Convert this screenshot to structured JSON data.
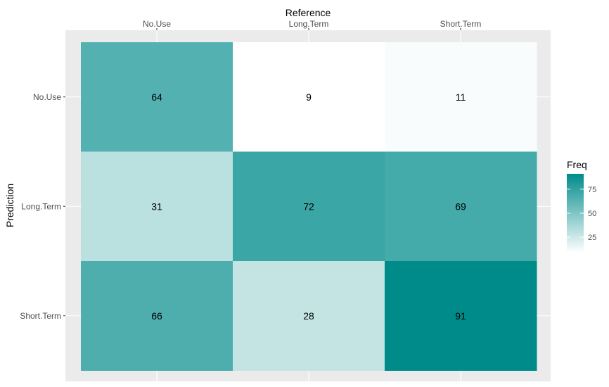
{
  "chart_data": {
    "type": "heatmap",
    "xlabel": "Reference",
    "ylabel": "Prediction",
    "x_categories": [
      "No.Use",
      "Long.Term",
      "Short.Term"
    ],
    "y_categories": [
      "No.Use",
      "Long.Term",
      "Short.Term"
    ],
    "x_axis_position": "top",
    "values": [
      [
        64,
        9,
        11
      ],
      [
        31,
        72,
        69
      ],
      [
        66,
        28,
        91
      ]
    ],
    "legend": {
      "title": "Freq",
      "ticks": [
        25,
        50,
        75
      ],
      "range": [
        9,
        91
      ],
      "low_color": "#ffffff",
      "high_color": "#008B8B",
      "position": "right"
    },
    "colors": {
      "panel_background": "#EBEBEB",
      "grid": "#ffffff"
    },
    "grid": true
  }
}
